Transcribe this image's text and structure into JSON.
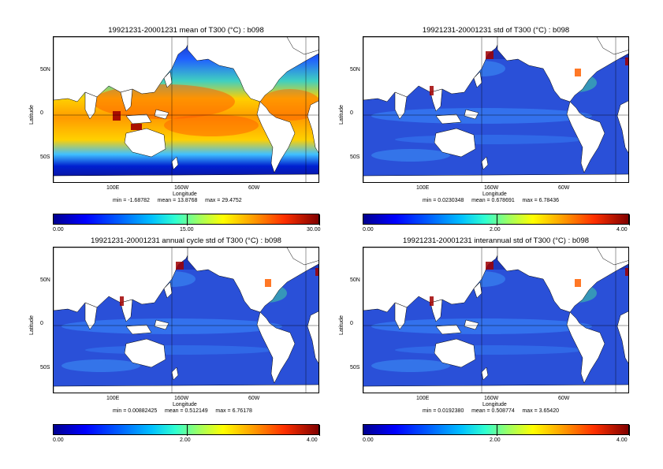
{
  "panels": [
    {
      "title": "19921231-20001231 mean of T300 (°C) : b098",
      "ylabel": "Latitude",
      "xlabel": "Longitude",
      "yticks": [
        "50N",
        "0",
        "50S"
      ],
      "xticks": [
        "100E",
        "160W",
        "60W"
      ],
      "stats": "min = -1.68782     mean = 13.8768     max = 29.4752",
      "colorbar": [
        "0.00",
        "15.00",
        "30.00"
      ],
      "style": "mean"
    },
    {
      "title": "19921231-20001231 std of T300 (°C) : b098",
      "ylabel": "Latitude",
      "xlabel": "Longitude",
      "yticks": [
        "50N",
        "0",
        "50S"
      ],
      "xticks": [
        "100E",
        "160W",
        "60W"
      ],
      "stats": "min = 0.0230348     mean = 0.678691     max = 6.78436",
      "colorbar": [
        "0.00",
        "2.00",
        "4.00"
      ],
      "style": "std"
    },
    {
      "title": "19921231-20001231 annual cycle std of T300 (°C) : b098",
      "ylabel": "Latitude",
      "xlabel": "Longitude",
      "yticks": [
        "50N",
        "0",
        "50S"
      ],
      "xticks": [
        "100E",
        "160W",
        "60W"
      ],
      "stats": "min = 0.00882425     mean = 0.512149     max = 6.76178",
      "colorbar": [
        "0.00",
        "2.00",
        "4.00"
      ],
      "style": "std"
    },
    {
      "title": "19921231-20001231 interannual std of T300 (°C) : b098",
      "ylabel": "Latitude",
      "xlabel": "Longitude",
      "yticks": [
        "50N",
        "0",
        "50S"
      ],
      "xticks": [
        "100E",
        "160W",
        "60W"
      ],
      "stats": "min = 0.0192380     mean = 0.508774     max = 3.65420",
      "colorbar": [
        "0.00",
        "2.00",
        "4.00"
      ],
      "style": "std"
    }
  ],
  "colors": {
    "ocean_base": "#2a50d8",
    "land": "#ffffff",
    "warm_core": "#ff6000",
    "warm_mid": "#ffd000",
    "cool_mid": "#40e0a0",
    "polar": "#1020a0",
    "hotspot": "#a00000"
  }
}
